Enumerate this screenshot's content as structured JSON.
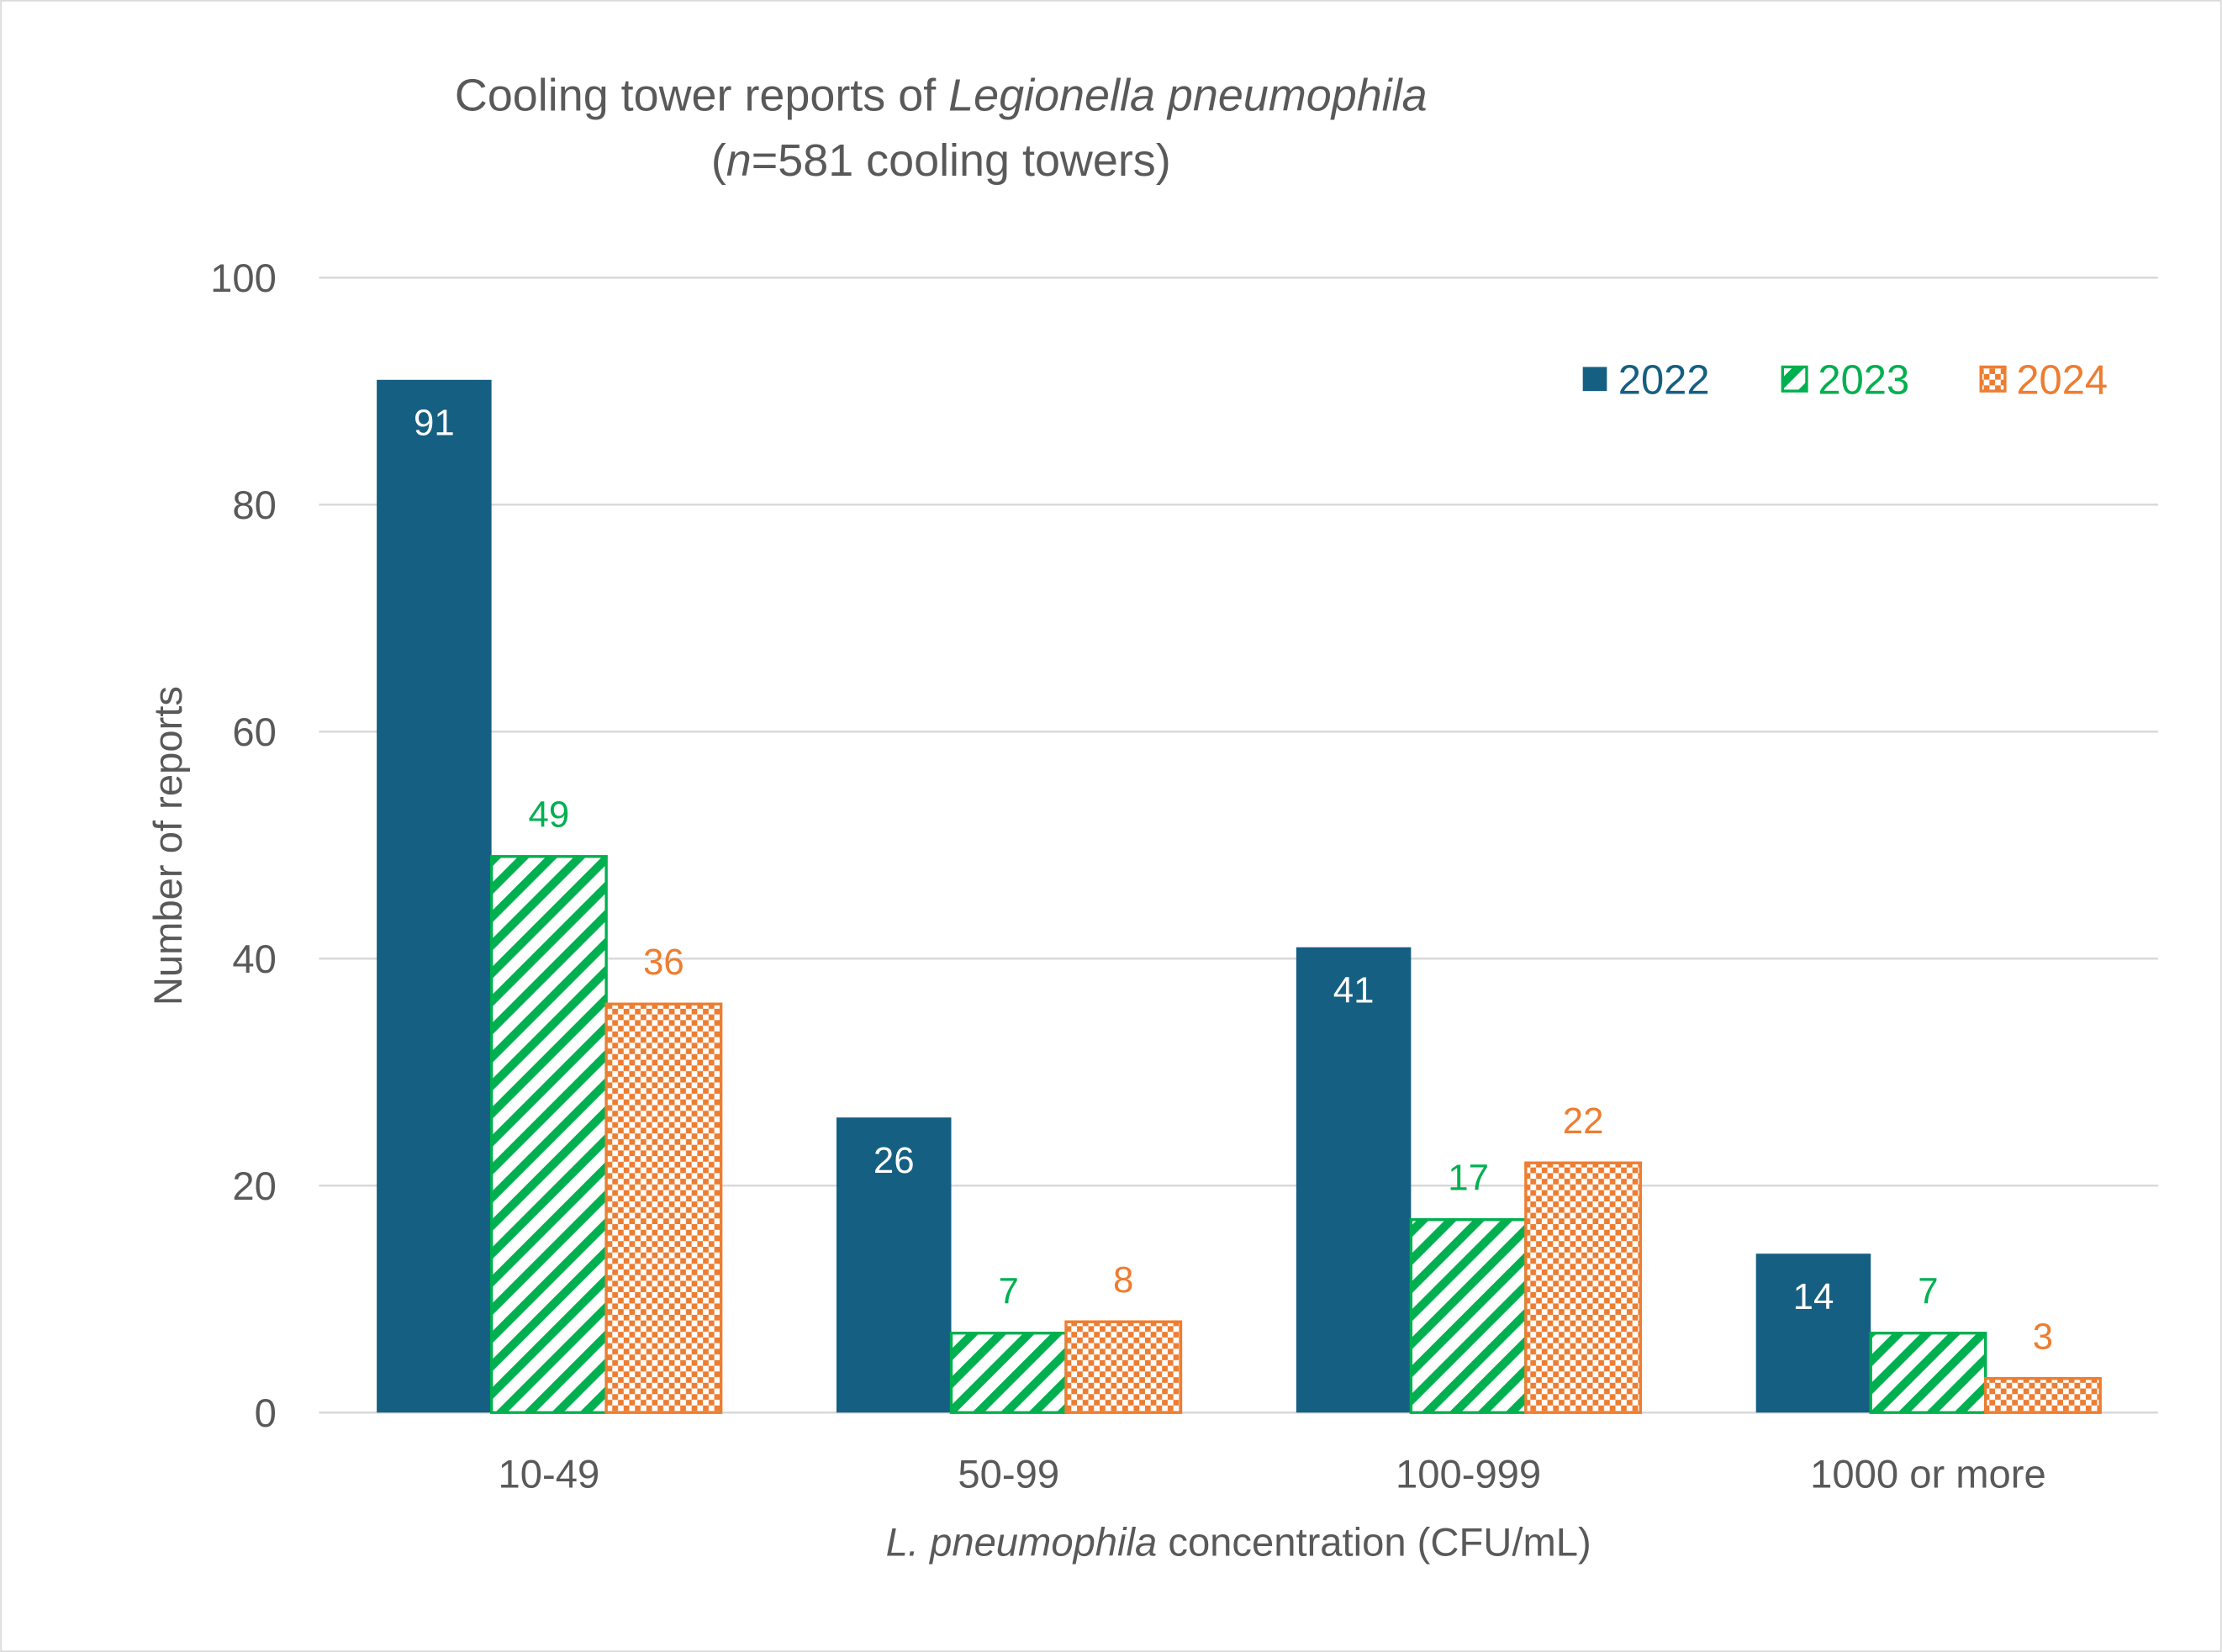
{
  "chart_data": {
    "type": "bar",
    "title_line1_prefix": "Cooling tower reports of ",
    "title_line1_italic": "Legionella pneumophila",
    "title_line2_open": "(",
    "title_line2_italic": "n",
    "title_line2_rest": "=581 cooling towers)",
    "xlabel_italic": "L. pneumophila",
    "xlabel_rest": " concentration (CFU/mL)",
    "ylabel": "Number of reports",
    "categories": [
      "10-49",
      "50-99",
      "100-999",
      "1000 or more"
    ],
    "ylim": [
      0,
      100
    ],
    "yticks": [
      0,
      20,
      40,
      60,
      80,
      100
    ],
    "grid": true,
    "legend_position": "top-right",
    "series": [
      {
        "name": "2022",
        "values": [
          91,
          26,
          41,
          14
        ],
        "color": "#155F82",
        "pattern": "solid"
      },
      {
        "name": "2023",
        "values": [
          49,
          7,
          17,
          7
        ],
        "color": "#00B050",
        "pattern": "diagonal-stripes"
      },
      {
        "name": "2024",
        "values": [
          36,
          8,
          22,
          3
        ],
        "color": "#ED7D31",
        "pattern": "checkerboard"
      }
    ]
  }
}
